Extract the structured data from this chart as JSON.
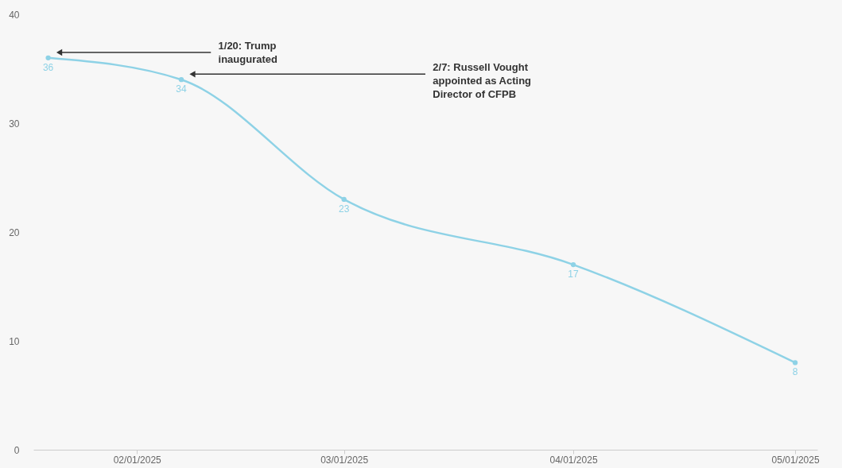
{
  "chart_data": {
    "type": "line",
    "x": [
      "2025-01-20",
      "2025-02-07",
      "2025-03-01",
      "2025-04-01",
      "2025-05-01"
    ],
    "series": [
      {
        "color": "#8ed2e6",
        "values": [
          36,
          34,
          23,
          17,
          8
        ]
      }
    ],
    "xlim": [
      "2025-01-18",
      "2025-05-04"
    ],
    "xticks": [
      {
        "value": "2025-02-01",
        "label": "02/01/2025"
      },
      {
        "value": "2025-03-01",
        "label": "03/01/2025"
      },
      {
        "value": "2025-04-01",
        "label": "04/01/2025"
      },
      {
        "value": "2025-05-01",
        "label": "05/01/2025"
      }
    ],
    "ylim": [
      0,
      40
    ],
    "yticks": [
      0,
      10,
      20,
      30,
      40
    ],
    "annotations": [
      "1/20: Trump\ninaugurated",
      "2/7: Russell Vought\nappointed as Acting\nDirector of CFPB"
    ],
    "data_labels": true,
    "marker": "circle",
    "line_style": "solid",
    "grid": false
  }
}
